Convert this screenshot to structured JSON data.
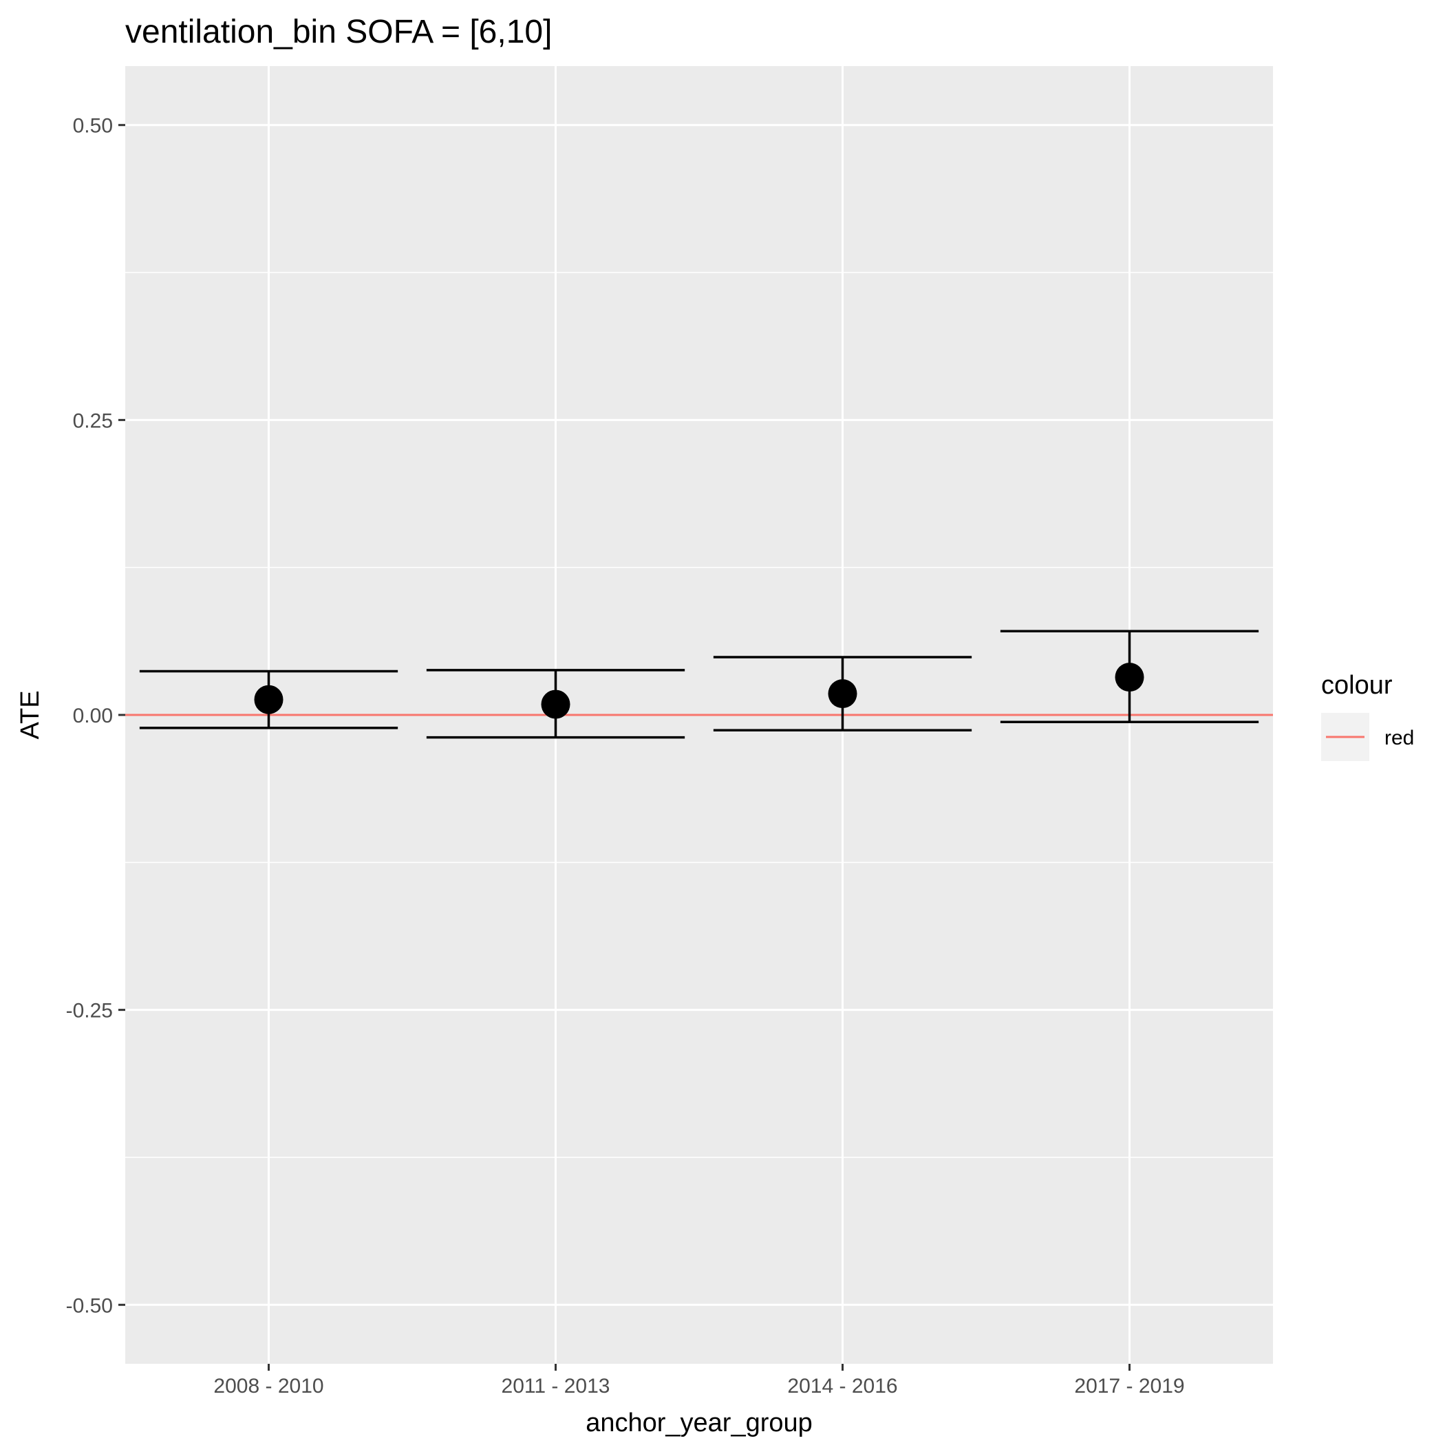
{
  "chart_data": {
    "type": "scatter",
    "title": "ventilation_bin SOFA = [6,10]",
    "xlabel": "anchor_year_group",
    "ylabel": "ATE",
    "categories": [
      "2008 - 2010",
      "2011 - 2013",
      "2014 - 2016",
      "2017 - 2019"
    ],
    "series": [
      {
        "points": [
          {
            "x": "2008 - 2010",
            "y": 0.013,
            "lower": -0.011,
            "upper": 0.037
          },
          {
            "x": "2011 - 2013",
            "y": 0.009,
            "lower": -0.019,
            "upper": 0.038
          },
          {
            "x": "2014 - 2016",
            "y": 0.018,
            "lower": -0.013,
            "upper": 0.049
          },
          {
            "x": "2017 - 2019",
            "y": 0.032,
            "lower": -0.006,
            "upper": 0.071
          }
        ]
      }
    ],
    "reference_line": {
      "y": 0,
      "color": "#F8766D"
    },
    "ylim": [
      -0.55,
      0.55
    ],
    "yticks": [
      -0.5,
      -0.25,
      0.0,
      0.25,
      0.5
    ],
    "ytick_labels": [
      "-0.50",
      "-0.25",
      "0.00",
      "0.25",
      "0.50"
    ],
    "grid": true,
    "legend": {
      "title": "colour",
      "entries": [
        {
          "label": "red",
          "color": "#F8766D"
        }
      ],
      "position": "right"
    },
    "colors": {
      "panel": "#EBEBEB",
      "grid": "#FFFFFF",
      "marks": "#000000"
    }
  }
}
